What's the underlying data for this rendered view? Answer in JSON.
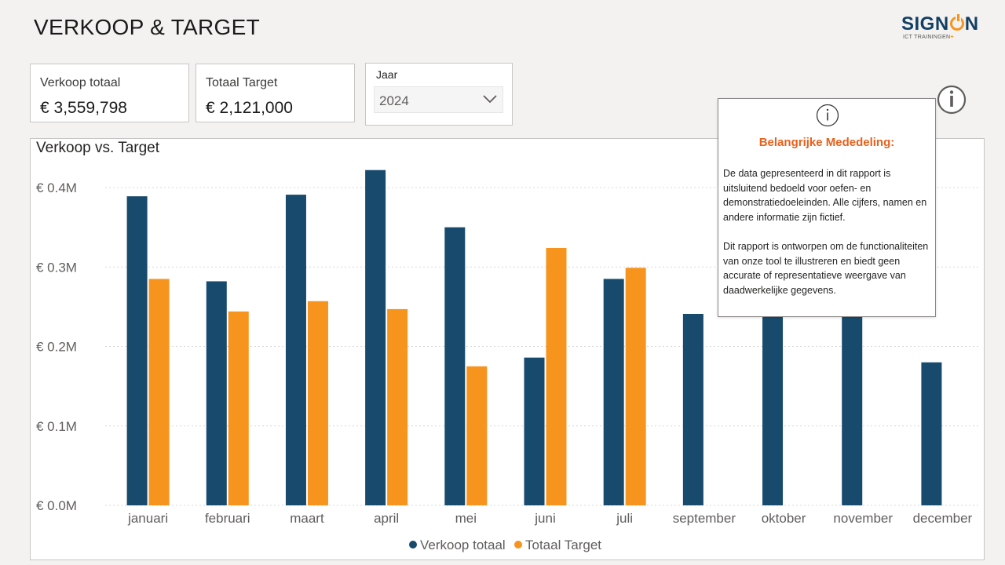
{
  "page": {
    "title": "VERKOOP & TARGET"
  },
  "logo": {
    "text_left": "SIGN",
    "text_right": "N",
    "subtitle": "ICT TRAININGEN",
    "plus": "+"
  },
  "kpis": [
    {
      "label": "Verkoop totaal",
      "value": "€ 3,559,798"
    },
    {
      "label": "Totaal Target",
      "value": "€ 2,121,000"
    }
  ],
  "slicer": {
    "label": "Jaar",
    "value": "2024",
    "icon": "chevron-down-icon"
  },
  "notice": {
    "icon": "info-icon",
    "heading": "Belangrijke Mededeling:",
    "paragraph1": "De data gepresenteerd in dit rapport is uitsluitend bedoeld voor oefen- en demonstratiedoeleinden. Alle cijfers, namen en andere informatie zijn fictief.",
    "paragraph2": "Dit rapport is ontworpen om de functionaliteiten van onze tool te illustreren en biedt geen accurate of representatieve weergave van daadwerkelijke gegevens."
  },
  "colors": {
    "verkoop": "#174a6d",
    "target": "#f7941d",
    "notice_heading": "#e8601c",
    "grid": "#d9d9d9"
  },
  "chart_data": {
    "type": "bar",
    "title": "Verkoop vs. Target",
    "categories": [
      "januari",
      "februari",
      "maart",
      "april",
      "mei",
      "juni",
      "juli",
      "september",
      "oktober",
      "november",
      "december"
    ],
    "series": [
      {
        "name": "Verkoop totaal",
        "values": [
          389000,
          282000,
          391000,
          422000,
          350000,
          186000,
          285000,
          241000,
          303000,
          350000,
          180000
        ]
      },
      {
        "name": "Totaal Target",
        "values": [
          285000,
          244000,
          257000,
          247000,
          175000,
          324000,
          299000,
          null,
          null,
          null,
          null
        ]
      }
    ],
    "yticks": [
      "€ 0.0M",
      "€ 0.1M",
      "€ 0.2M",
      "€ 0.3M",
      "€ 0.4M"
    ],
    "ylim": [
      0,
      0.4
    ],
    "grid": true,
    "legend_position": "bottom-center",
    "xlabel": "",
    "ylabel": ""
  }
}
